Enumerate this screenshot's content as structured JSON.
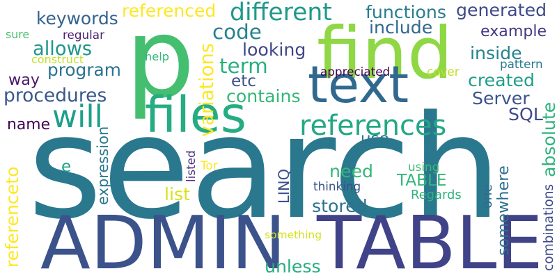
{
  "words": [
    {
      "id": "search",
      "text": "search",
      "color": "#2a788e",
      "vertical": false
    },
    {
      "id": "admin",
      "text": "ADMIN",
      "color": "#3b528b",
      "vertical": false
    },
    {
      "id": "table-big",
      "text": "TABLE",
      "color": "#404387",
      "vertical": false
    },
    {
      "id": "p",
      "text": "p",
      "color": "#44bf70",
      "vertical": false
    },
    {
      "id": "find",
      "text": "find",
      "color": "#8fd744",
      "vertical": false
    },
    {
      "id": "files",
      "text": "files",
      "color": "#25ac82",
      "vertical": false
    },
    {
      "id": "text",
      "text": "text",
      "color": "#31688e",
      "vertical": false
    },
    {
      "id": "references",
      "text": "references",
      "color": "#22a884",
      "vertical": false
    },
    {
      "id": "will",
      "text": "will",
      "color": "#1f9e89",
      "vertical": false
    },
    {
      "id": "different",
      "text": "different",
      "color": "#1f9a8a",
      "vertical": false
    },
    {
      "id": "code",
      "text": "code",
      "color": "#26818e",
      "vertical": false
    },
    {
      "id": "term",
      "text": "term",
      "color": "#29af7f",
      "vertical": false
    },
    {
      "id": "keywords",
      "text": "keywords",
      "color": "#33638d",
      "vertical": false
    },
    {
      "id": "allows",
      "text": "allows",
      "color": "#1f968b",
      "vertical": false
    },
    {
      "id": "program",
      "text": "program",
      "color": "#2c728e",
      "vertical": false
    },
    {
      "id": "procedures",
      "text": "procedures",
      "color": "#38588c",
      "vertical": false
    },
    {
      "id": "way",
      "text": "way",
      "color": "#481769",
      "vertical": false
    },
    {
      "id": "name",
      "text": "name",
      "color": "#440154",
      "vertical": false
    },
    {
      "id": "referenced",
      "text": "referenced",
      "color": "#fde725",
      "vertical": false
    },
    {
      "id": "functions",
      "text": "functions",
      "color": "#287c8e",
      "vertical": false
    },
    {
      "id": "generated",
      "text": "generated",
      "color": "#3e4a89",
      "vertical": false
    },
    {
      "id": "include",
      "text": "include",
      "color": "#31688e",
      "vertical": false
    },
    {
      "id": "example",
      "text": "example",
      "color": "#443983",
      "vertical": false
    },
    {
      "id": "inside",
      "text": "inside",
      "color": "#25848e",
      "vertical": false
    },
    {
      "id": "looking",
      "text": "looking",
      "color": "#404688",
      "vertical": false
    },
    {
      "id": "created",
      "text": "created",
      "color": "#1f9e89",
      "vertical": false
    },
    {
      "id": "server",
      "text": "Server",
      "color": "#3b528b",
      "vertical": false
    },
    {
      "id": "sql",
      "text": "SQL",
      "color": "#3e4989",
      "vertical": false
    },
    {
      "id": "contains",
      "text": "contains",
      "color": "#35b779",
      "vertical": false
    },
    {
      "id": "etc",
      "text": "etc",
      "color": "#3b528b",
      "vertical": false
    },
    {
      "id": "use",
      "text": "use",
      "color": "#2a768e",
      "vertical": false
    },
    {
      "id": "need",
      "text": "need",
      "color": "#35b779",
      "vertical": false
    },
    {
      "id": "table-small",
      "text": "TABLE",
      "color": "#34b679",
      "vertical": false
    },
    {
      "id": "stored",
      "text": "stored",
      "color": "#2c728e",
      "vertical": false
    },
    {
      "id": "list",
      "text": "list",
      "color": "#d8e219",
      "vertical": false
    },
    {
      "id": "e",
      "text": "e",
      "color": "#1fa088",
      "vertical": false
    },
    {
      "id": "unless",
      "text": "unless",
      "color": "#26ad81",
      "vertical": false
    },
    {
      "id": "something",
      "text": "something",
      "color": "#d5e21a",
      "vertical": false
    },
    {
      "id": "regards",
      "text": "Regards",
      "color": "#2db27d",
      "vertical": false
    },
    {
      "id": "thinking",
      "text": "thinking",
      "color": "#3b528b",
      "vertical": false
    },
    {
      "id": "using",
      "text": "using",
      "color": "#3dbc74",
      "vertical": false
    },
    {
      "id": "tor",
      "text": "Tor",
      "color": "#fde725",
      "vertical": false
    },
    {
      "id": "help",
      "text": "help",
      "color": "#35b779",
      "vertical": false
    },
    {
      "id": "construct",
      "text": "construct",
      "color": "#c2df23",
      "vertical": false
    },
    {
      "id": "regular",
      "text": "regular",
      "color": "#481f70",
      "vertical": false
    },
    {
      "id": "sure",
      "text": "sure",
      "color": "#4ac16d",
      "vertical": false
    },
    {
      "id": "appreciated",
      "text": "appreciated",
      "color": "#440154",
      "vertical": false
    },
    {
      "id": "cover",
      "text": "cover",
      "color": "#bddf26",
      "vertical": false
    },
    {
      "id": "pattern",
      "text": "pattern",
      "color": "#2a788e",
      "vertical": false
    },
    {
      "id": "variations",
      "text": "variations",
      "color": "#fde725",
      "vertical": true
    },
    {
      "id": "absolute",
      "text": "absolute",
      "color": "#2db27d",
      "vertical": true
    },
    {
      "id": "somewhere",
      "text": "somewhere",
      "color": "#2d708e",
      "vertical": true
    },
    {
      "id": "combinations",
      "text": "combinations",
      "color": "#3e4a89",
      "vertical": true
    },
    {
      "id": "one",
      "text": "one",
      "color": "#2f6c8e",
      "vertical": true
    },
    {
      "id": "linq",
      "text": "LINQ",
      "color": "#3b518b",
      "vertical": true
    },
    {
      "id": "listed",
      "text": "listed",
      "color": "#472d7b",
      "vertical": true
    },
    {
      "id": "expression",
      "text": "expression",
      "color": "#2a788e",
      "vertical": true
    },
    {
      "id": "referenceto",
      "text": "referenceto",
      "color": "#fde725",
      "vertical": true
    }
  ]
}
